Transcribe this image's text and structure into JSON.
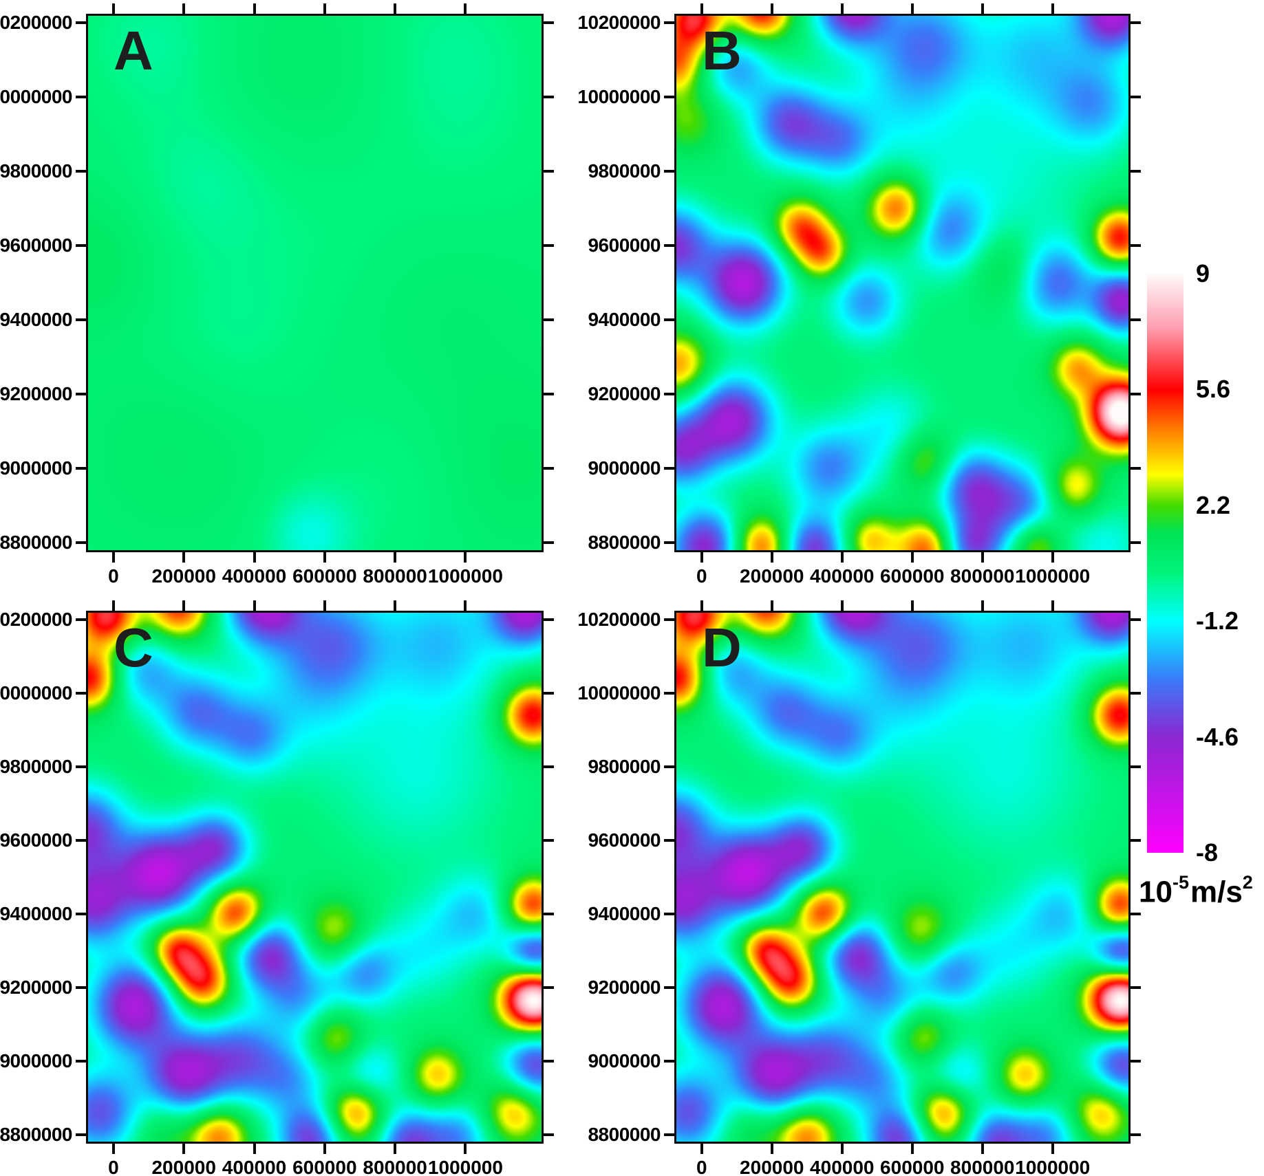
{
  "figure": {
    "background_color": "#FFFFFF",
    "axis_color": "#0A0A0A",
    "panel_label_color": "#1E1E1E"
  },
  "axes": {
    "x_range": [
      -78000,
      1222000
    ],
    "y_range": [
      8775000,
      10224000
    ],
    "x_ticks": [
      0,
      200000,
      400000,
      600000,
      800000,
      1000000
    ],
    "x_tick_labels": [
      "0",
      "200000",
      "400000",
      "600000",
      "800000",
      "1000000"
    ],
    "y_ticks": [
      10200000,
      10000000,
      9800000,
      9600000,
      9400000,
      9200000,
      9000000,
      8800000
    ],
    "y_tick_labels": [
      "10200000",
      "10000000",
      "9800000",
      "9600000",
      "9400000",
      "9200000",
      "9000000",
      "8800000"
    ],
    "xlabel": "",
    "ylabel": ""
  },
  "panels": [
    {
      "id": "A",
      "label": "A"
    },
    {
      "id": "B",
      "label": "B"
    },
    {
      "id": "C",
      "label": "C"
    },
    {
      "id": "D",
      "label": "D"
    }
  ],
  "colorbar": {
    "min": -8,
    "max": 9,
    "tick_values": [
      9,
      5.6,
      2.2,
      -1.2,
      -4.6,
      -8
    ],
    "tick_labels": [
      "9",
      "5.6",
      "2.2",
      "-1.2",
      "-4.6",
      "-8"
    ],
    "unit": {
      "base": "10",
      "exponent": "-5",
      "rest": "m/s",
      "rest_exponent": "2"
    },
    "colormap_stops": [
      [
        -8.0,
        "#FF00FF"
      ],
      [
        -4.6,
        "#8C28D2"
      ],
      [
        -2.9,
        "#3A7BFA"
      ],
      [
        -1.2,
        "#00FFFF"
      ],
      [
        0.2,
        "#00F57D"
      ],
      [
        1.4,
        "#00E455"
      ],
      [
        2.2,
        "#44DC00"
      ],
      [
        3.1,
        "#FFFF00"
      ],
      [
        4.3,
        "#FF8A00"
      ],
      [
        5.6,
        "#FF0000"
      ],
      [
        7.4,
        "#FF9EB0"
      ],
      [
        9.0,
        "#FFFBFB"
      ]
    ]
  },
  "chart_data": [
    {
      "type": "heatmap",
      "panel": "A",
      "title": "",
      "units": "10^-5 m/s^2",
      "value_range": [
        -8,
        9
      ],
      "x_range": [
        -78000,
        1222000
      ],
      "y_range": [
        8775000,
        10224000
      ],
      "background_value": 0.45,
      "anomaly_columns": [
        "x",
        "y",
        "peak",
        "sigma"
      ],
      "anomalies": [
        [
          120000,
          10150000,
          -0.6,
          140000
        ],
        [
          550000,
          10060000,
          0.4,
          200000
        ],
        [
          950000,
          10130000,
          -0.5,
          170000
        ],
        [
          250000,
          9780000,
          -0.55,
          150000
        ],
        [
          -60000,
          9560000,
          0.55,
          140000
        ],
        [
          620000,
          9620000,
          -0.35,
          220000
        ],
        [
          900000,
          9500000,
          0.35,
          220000
        ],
        [
          320000,
          9350000,
          -0.4,
          160000
        ],
        [
          180000,
          9050000,
          0.4,
          180000
        ],
        [
          1120000,
          9000000,
          0.45,
          170000
        ],
        [
          560000,
          8820000,
          -1.3,
          85000
        ],
        [
          800000,
          8950000,
          -0.35,
          170000
        ],
        [
          1000000,
          9800000,
          -0.3,
          200000
        ]
      ]
    },
    {
      "type": "heatmap",
      "panel": "B",
      "title": "",
      "units": "10^-5 m/s^2",
      "value_range": [
        -8,
        9
      ],
      "x_range": [
        -78000,
        1222000
      ],
      "y_range": [
        8775000,
        10224000
      ],
      "background_value": 0.5,
      "anomaly_columns": [
        "x",
        "y",
        "peak",
        "sigma"
      ],
      "anomalies": [
        [
          -20000,
          10210000,
          5.6,
          60000
        ],
        [
          170000,
          10235000,
          5.2,
          60000
        ],
        [
          430000,
          10245000,
          -5.6,
          70000
        ],
        [
          640000,
          10150000,
          -3.0,
          100000
        ],
        [
          950000,
          10120000,
          -2.2,
          120000
        ],
        [
          1175000,
          10230000,
          -6.0,
          70000
        ],
        [
          1120000,
          9980000,
          -2.6,
          85000
        ],
        [
          -75000,
          10090000,
          3.8,
          55000
        ],
        [
          -40000,
          9940000,
          1.8,
          65000
        ],
        [
          100000,
          10080000,
          -2.8,
          70000
        ],
        [
          250000,
          9930000,
          -4.2,
          75000
        ],
        [
          390000,
          9880000,
          -2.8,
          70000
        ],
        [
          560000,
          9980000,
          -1.5,
          130000
        ],
        [
          860000,
          9780000,
          -1.2,
          170000
        ],
        [
          -80000,
          9600000,
          -4.8,
          75000
        ],
        [
          120000,
          9500000,
          -6.2,
          80000
        ],
        [
          280000,
          9650000,
          4.0,
          55000
        ],
        [
          345000,
          9580000,
          3.8,
          52000
        ],
        [
          470000,
          9450000,
          -3.0,
          72000
        ],
        [
          560000,
          9700000,
          4.6,
          60000
        ],
        [
          700000,
          9640000,
          -2.8,
          78000
        ],
        [
          870000,
          9540000,
          1.6,
          75000
        ],
        [
          1010000,
          9500000,
          -3.6,
          78000
        ],
        [
          1190000,
          9620000,
          5.2,
          55000
        ],
        [
          1200000,
          9450000,
          -5.4,
          60000
        ],
        [
          1195000,
          9150000,
          9.2,
          65000
        ],
        [
          1070000,
          9270000,
          3.4,
          55000
        ],
        [
          -65000,
          9280000,
          3.6,
          62000
        ],
        [
          -60000,
          9050000,
          -4.6,
          70000
        ],
        [
          90000,
          9130000,
          -5.6,
          80000
        ],
        [
          360000,
          9000000,
          -3.2,
          80000
        ],
        [
          540000,
          9100000,
          -1.8,
          90000
        ],
        [
          640000,
          9020000,
          2.6,
          62000
        ],
        [
          770000,
          8950000,
          -4.2,
          72000
        ],
        [
          910000,
          8890000,
          -3.8,
          82000
        ],
        [
          1060000,
          8950000,
          3.2,
          58000
        ],
        [
          10000,
          8790000,
          -5.2,
          70000
        ],
        [
          170000,
          8790000,
          4.4,
          58000
        ],
        [
          320000,
          8780000,
          -4.8,
          65000
        ],
        [
          480000,
          8805000,
          3.2,
          55000
        ],
        [
          640000,
          8780000,
          4.4,
          60000
        ],
        [
          770000,
          8790000,
          -4.2,
          60000
        ],
        [
          950000,
          8800000,
          3.4,
          55000
        ],
        [
          1150000,
          8790000,
          -1.5,
          80000
        ]
      ]
    },
    {
      "type": "heatmap",
      "panel": "C",
      "title": "",
      "units": "10^-5 m/s^2",
      "value_range": [
        -8,
        9
      ],
      "x_range": [
        -78000,
        1222000
      ],
      "y_range": [
        8775000,
        10224000
      ],
      "background_value": 0.5,
      "anomaly_columns": [
        "x",
        "y",
        "peak",
        "sigma"
      ],
      "anomalies": [
        [
          -20000,
          10210000,
          5.8,
          62000
        ],
        [
          -70000,
          10040000,
          5.2,
          58000
        ],
        [
          185000,
          10235000,
          4.8,
          62000
        ],
        [
          430000,
          10245000,
          -5.8,
          75000
        ],
        [
          620000,
          10140000,
          -3.2,
          105000
        ],
        [
          930000,
          10140000,
          -2.4,
          125000
        ],
        [
          1175000,
          10230000,
          -6.0,
          70000
        ],
        [
          1190000,
          9940000,
          5.4,
          58000
        ],
        [
          90000,
          10060000,
          -2.6,
          72000
        ],
        [
          240000,
          9950000,
          -3.4,
          78000
        ],
        [
          390000,
          9880000,
          -2.6,
          72000
        ],
        [
          540000,
          9980000,
          -1.5,
          130000
        ],
        [
          870000,
          9780000,
          -1.3,
          170000
        ],
        [
          -80000,
          9630000,
          -4.6,
          80000
        ],
        [
          -60000,
          9430000,
          -5.0,
          80000
        ],
        [
          130000,
          9510000,
          -6.3,
          82000
        ],
        [
          290000,
          9580000,
          -4.5,
          68000
        ],
        [
          180000,
          9300000,
          4.8,
          55000
        ],
        [
          250000,
          9220000,
          5.2,
          60000
        ],
        [
          350000,
          9400000,
          5.0,
          58000
        ],
        [
          440000,
          9290000,
          -4.8,
          70000
        ],
        [
          530000,
          9170000,
          -2.6,
          75000
        ],
        [
          630000,
          9350000,
          2.6,
          65000
        ],
        [
          710000,
          9240000,
          -3.0,
          70000
        ],
        [
          880000,
          9300000,
          -1.6,
          90000
        ],
        [
          1030000,
          9400000,
          -2.2,
          78000
        ],
        [
          1190000,
          9420000,
          5.0,
          55000
        ],
        [
          1200000,
          9290000,
          -5.4,
          58000
        ],
        [
          1195000,
          9170000,
          9.2,
          65000
        ],
        [
          60000,
          9150000,
          -6.0,
          85000
        ],
        [
          200000,
          8960000,
          -5.5,
          80000
        ],
        [
          360000,
          9010000,
          -3.6,
          80000
        ],
        [
          500000,
          8950000,
          -2.6,
          75000
        ],
        [
          630000,
          9060000,
          2.8,
          60000
        ],
        [
          720000,
          8950000,
          -2.8,
          70000
        ],
        [
          -40000,
          8860000,
          -4.2,
          78000
        ],
        [
          300000,
          8795000,
          4.0,
          60000
        ],
        [
          560000,
          8785000,
          -4.6,
          65000
        ],
        [
          690000,
          8865000,
          4.8,
          62000
        ],
        [
          840000,
          8775000,
          -4.4,
          65000
        ],
        [
          920000,
          8960000,
          3.2,
          55000
        ],
        [
          1140000,
          8860000,
          3.4,
          62000
        ],
        [
          1200000,
          8990000,
          -4.6,
          65000
        ],
        [
          980000,
          8790000,
          -3.0,
          65000
        ],
        [
          150000,
          8820000,
          1.5,
          70000
        ]
      ]
    },
    {
      "type": "heatmap",
      "panel": "D",
      "title": "",
      "units": "10^-5 m/s^2",
      "value_range": [
        -8,
        9
      ],
      "x_range": [
        -78000,
        1222000
      ],
      "y_range": [
        8775000,
        10224000
      ],
      "background_value": 0.5,
      "anomaly_columns": [
        "x",
        "y",
        "peak",
        "sigma"
      ],
      "anomalies": [
        [
          -20000,
          10210000,
          5.8,
          62000
        ],
        [
          -70000,
          10040000,
          5.2,
          58000
        ],
        [
          185000,
          10235000,
          4.8,
          62000
        ],
        [
          430000,
          10245000,
          -5.8,
          75000
        ],
        [
          620000,
          10140000,
          -3.2,
          105000
        ],
        [
          930000,
          10140000,
          -2.4,
          125000
        ],
        [
          1175000,
          10230000,
          -6.0,
          70000
        ],
        [
          1190000,
          9940000,
          5.4,
          58000
        ],
        [
          90000,
          10060000,
          -2.6,
          72000
        ],
        [
          240000,
          9950000,
          -3.4,
          78000
        ],
        [
          390000,
          9880000,
          -2.6,
          72000
        ],
        [
          540000,
          9980000,
          -1.5,
          130000
        ],
        [
          870000,
          9780000,
          -1.3,
          170000
        ],
        [
          -80000,
          9630000,
          -4.6,
          80000
        ],
        [
          -60000,
          9430000,
          -5.0,
          80000
        ],
        [
          130000,
          9510000,
          -6.3,
          82000
        ],
        [
          290000,
          9580000,
          -4.5,
          68000
        ],
        [
          180000,
          9300000,
          4.8,
          55000
        ],
        [
          250000,
          9220000,
          5.2,
          60000
        ],
        [
          350000,
          9400000,
          5.0,
          58000
        ],
        [
          440000,
          9290000,
          -4.8,
          70000
        ],
        [
          530000,
          9170000,
          -2.6,
          75000
        ],
        [
          630000,
          9350000,
          2.6,
          65000
        ],
        [
          710000,
          9240000,
          -3.0,
          70000
        ],
        [
          880000,
          9300000,
          -1.6,
          90000
        ],
        [
          1030000,
          9400000,
          -2.2,
          78000
        ],
        [
          1190000,
          9420000,
          5.0,
          55000
        ],
        [
          1200000,
          9290000,
          -5.4,
          58000
        ],
        [
          1195000,
          9170000,
          9.2,
          65000
        ],
        [
          60000,
          9150000,
          -6.0,
          85000
        ],
        [
          200000,
          8960000,
          -5.5,
          80000
        ],
        [
          360000,
          9010000,
          -3.6,
          80000
        ],
        [
          500000,
          8950000,
          -2.6,
          75000
        ],
        [
          630000,
          9060000,
          2.8,
          60000
        ],
        [
          720000,
          8950000,
          -2.8,
          70000
        ],
        [
          -40000,
          8860000,
          -4.2,
          78000
        ],
        [
          300000,
          8795000,
          4.0,
          60000
        ],
        [
          560000,
          8785000,
          -4.6,
          65000
        ],
        [
          690000,
          8865000,
          4.8,
          62000
        ],
        [
          840000,
          8775000,
          -4.4,
          65000
        ],
        [
          920000,
          8960000,
          3.2,
          55000
        ],
        [
          1140000,
          8860000,
          3.4,
          62000
        ],
        [
          1200000,
          8990000,
          -4.6,
          65000
        ],
        [
          980000,
          8790000,
          -3.0,
          65000
        ],
        [
          150000,
          8820000,
          1.5,
          70000
        ]
      ]
    }
  ]
}
